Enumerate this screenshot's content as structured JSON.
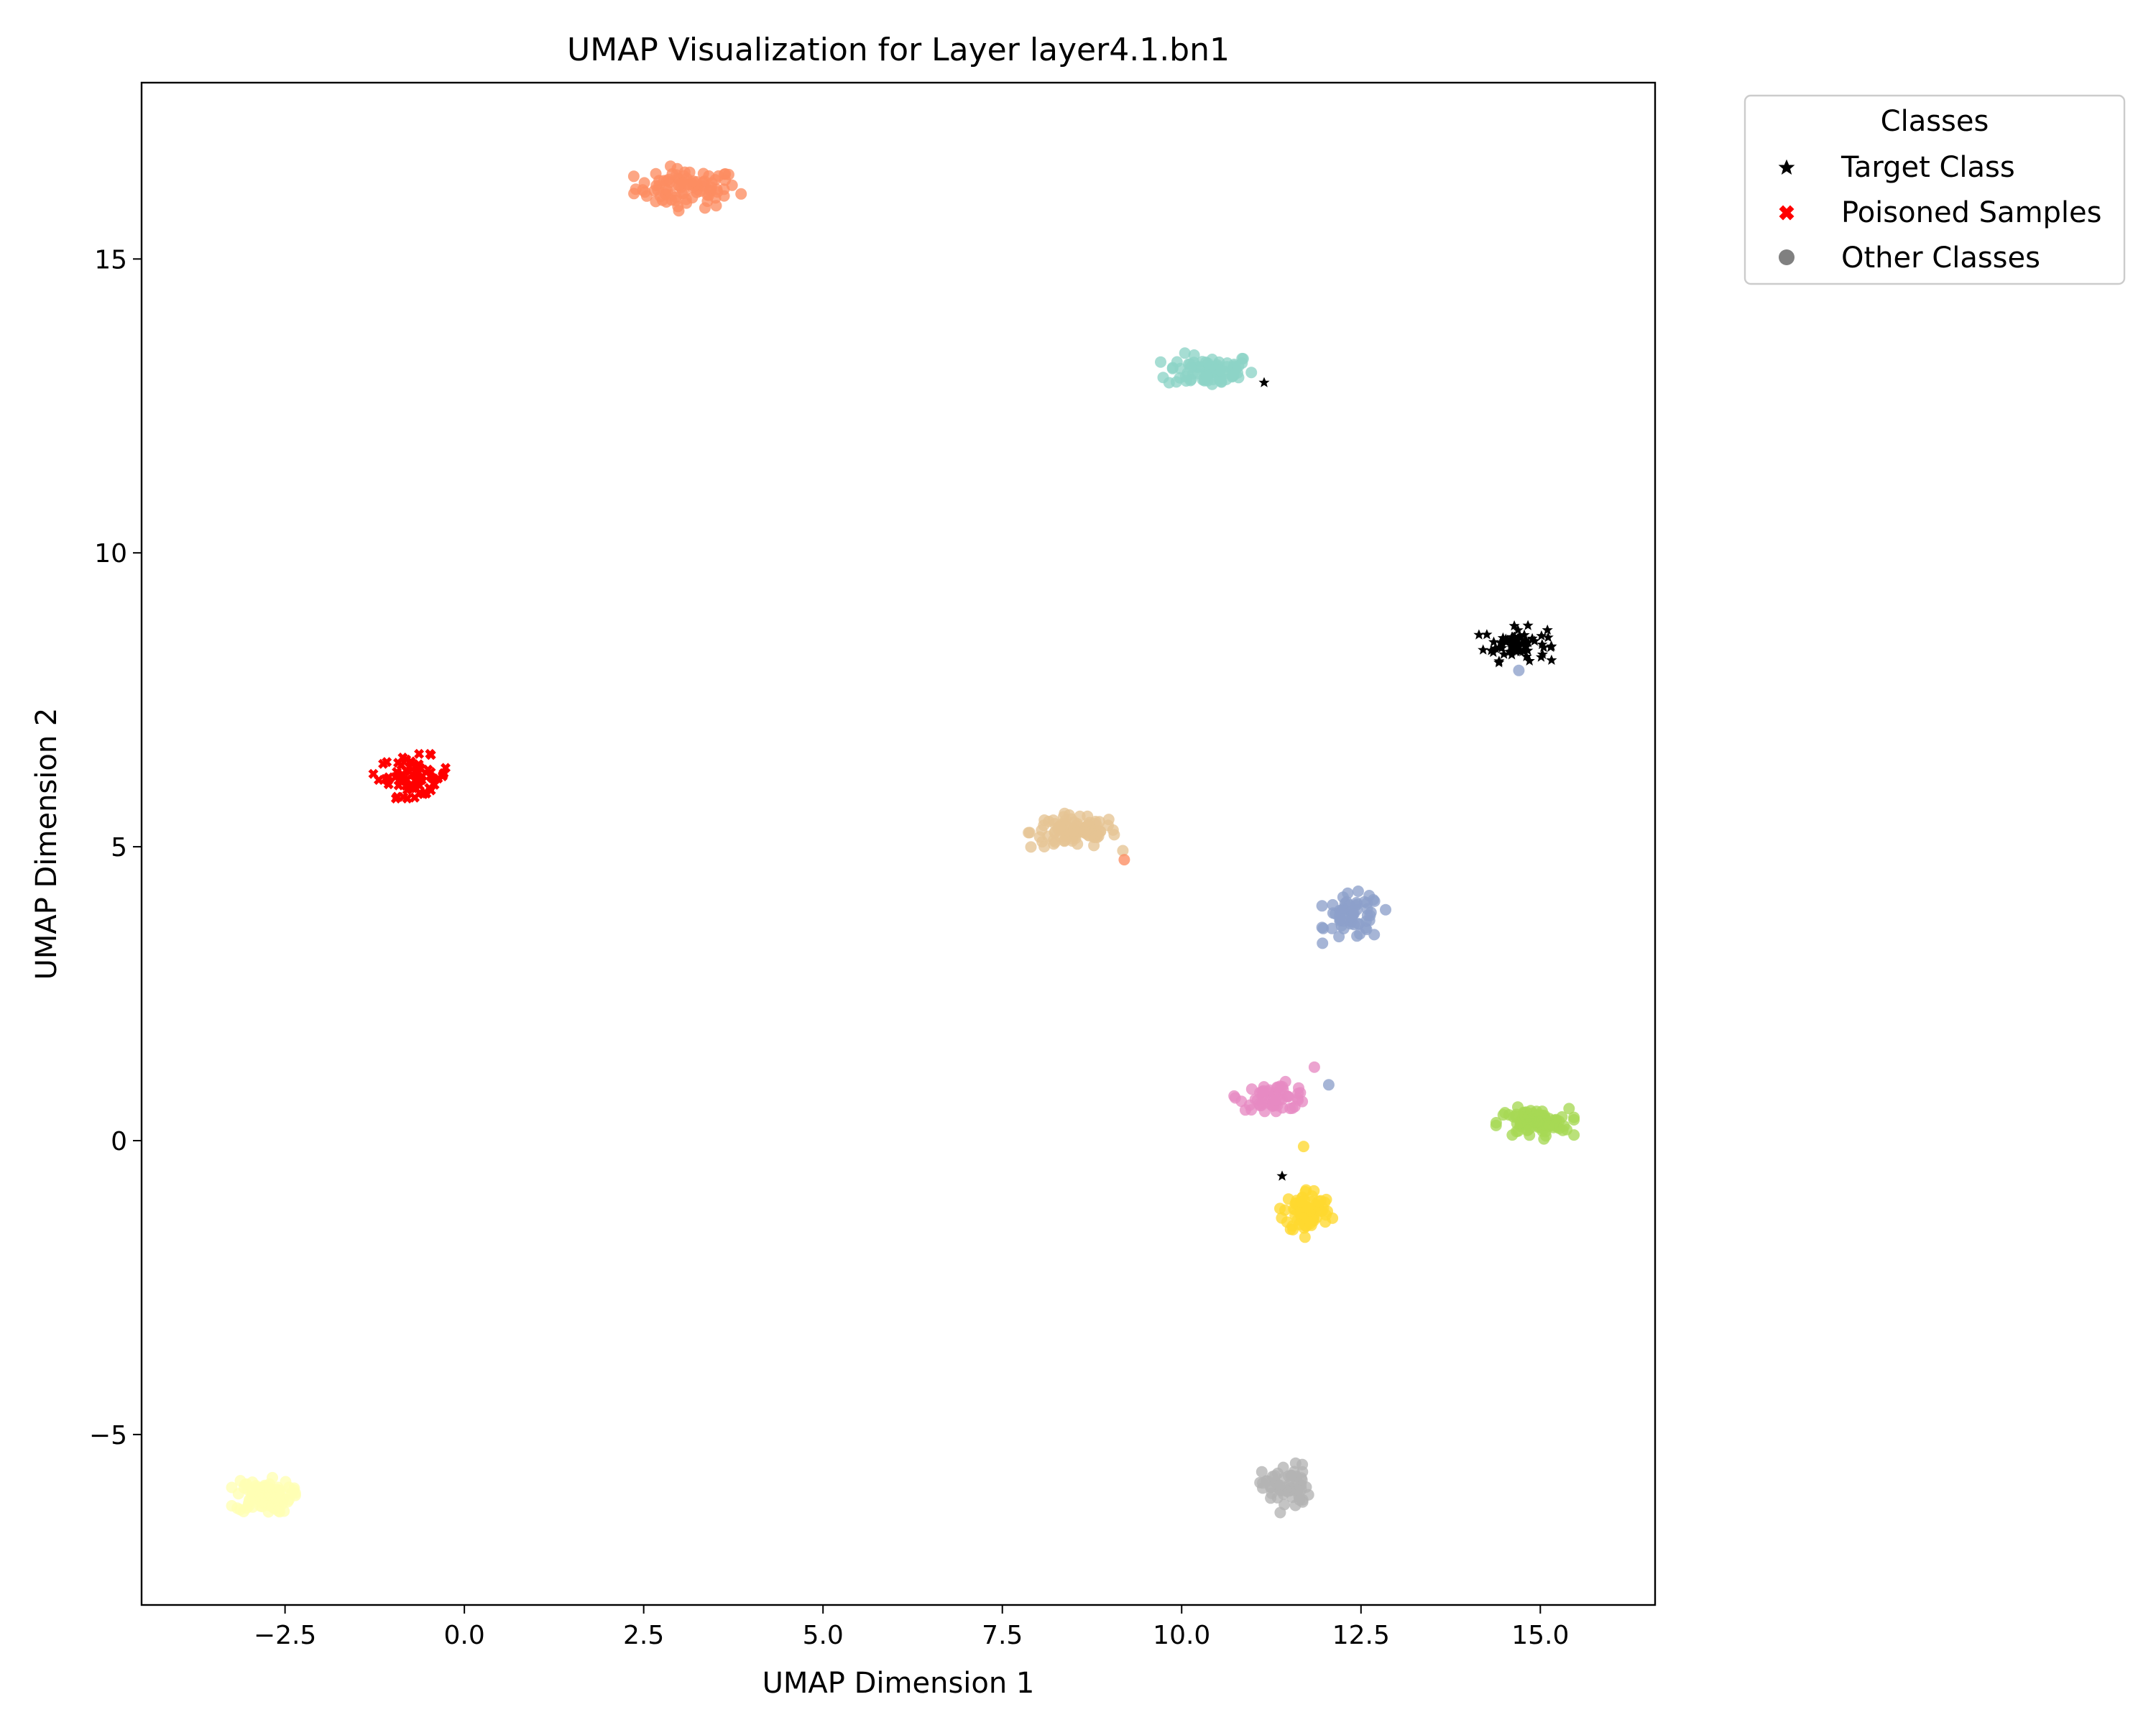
{
  "chart_data": {
    "type": "scatter",
    "title": "UMAP Visualization for Layer layer4.1.bn1",
    "xlabel": "UMAP Dimension 1",
    "ylabel": "UMAP Dimension 2",
    "xlim": [
      -4.5,
      16.6
    ],
    "ylim": [
      -7.9,
      18.0
    ],
    "xticks": [
      -2.5,
      0.0,
      2.5,
      5.0,
      7.5,
      10.0,
      12.5,
      15.0
    ],
    "xtick_labels": [
      "−2.5",
      "0.0",
      "2.5",
      "5.0",
      "7.5",
      "10.0",
      "12.5",
      "15.0"
    ],
    "yticks": [
      -5,
      0,
      5,
      10,
      15
    ],
    "ytick_labels": [
      "−5",
      "0",
      "5",
      "10",
      "15"
    ],
    "grid": false,
    "legend": {
      "title": "Classes",
      "placement": "outside-top-right",
      "entries": [
        {
          "label": "Target Class",
          "marker": "star",
          "color": "#000000"
        },
        {
          "label": "Poisoned Samples",
          "marker": "x",
          "color": "#ff0000"
        },
        {
          "label": "Other Classes",
          "marker": "circle",
          "color": "#808080"
        }
      ]
    },
    "clusters": [
      {
        "group": "other",
        "color": "#fc8d62",
        "marker": "circle",
        "center": [
          3.1,
          16.2
        ],
        "spread": [
          0.65,
          0.3
        ],
        "count": 90
      },
      {
        "group": "other",
        "color": "#8dd3c7",
        "marker": "circle",
        "center": [
          10.4,
          13.1
        ],
        "spread": [
          0.55,
          0.25
        ],
        "count": 80
      },
      {
        "group": "target",
        "color": "#000000",
        "marker": "star",
        "center": [
          14.65,
          8.45
        ],
        "spread": [
          0.4,
          0.25
        ],
        "count": 70
      },
      {
        "group": "poisoned",
        "color": "#ff0000",
        "marker": "x",
        "center": [
          -0.7,
          6.2
        ],
        "spread": [
          0.45,
          0.3
        ],
        "count": 70
      },
      {
        "group": "other",
        "color": "#e5c494",
        "marker": "circle",
        "center": [
          8.5,
          5.25
        ],
        "spread": [
          0.55,
          0.25
        ],
        "count": 100
      },
      {
        "group": "other",
        "color": "#8da0cb",
        "marker": "circle",
        "center": [
          12.4,
          3.8
        ],
        "spread": [
          0.35,
          0.35
        ],
        "count": 60
      },
      {
        "group": "other",
        "color": "#e78ac3",
        "marker": "circle",
        "center": [
          11.3,
          0.75
        ],
        "spread": [
          0.45,
          0.2
        ],
        "count": 60
      },
      {
        "group": "other",
        "color": "#a6d854",
        "marker": "circle",
        "center": [
          14.9,
          0.3
        ],
        "spread": [
          0.45,
          0.22
        ],
        "count": 90
      },
      {
        "group": "other",
        "color": "#ffd92f",
        "marker": "circle",
        "center": [
          11.75,
          -1.2
        ],
        "spread": [
          0.3,
          0.35
        ],
        "count": 80
      },
      {
        "group": "other",
        "color": "#ffffb3",
        "marker": "circle",
        "center": [
          -2.8,
          -6.05
        ],
        "spread": [
          0.35,
          0.25
        ],
        "count": 100
      },
      {
        "group": "other",
        "color": "#b3b3b3",
        "marker": "circle",
        "center": [
          11.45,
          -5.9
        ],
        "spread": [
          0.3,
          0.35
        ],
        "count": 60
      }
    ],
    "outliers": [
      {
        "group": "target",
        "color": "#000000",
        "marker": "star",
        "x": 11.15,
        "y": 12.9
      },
      {
        "group": "target",
        "color": "#000000",
        "marker": "star",
        "x": 11.4,
        "y": -0.6
      },
      {
        "group": "other",
        "color": "#fc8d62",
        "marker": "circle",
        "x": 9.2,
        "y": 4.78
      },
      {
        "group": "other",
        "color": "#8da0cb",
        "marker": "circle",
        "x": 12.05,
        "y": 0.95
      },
      {
        "group": "other",
        "color": "#8da0cb",
        "marker": "circle",
        "x": 14.7,
        "y": 8.0
      },
      {
        "group": "other",
        "color": "#e78ac3",
        "marker": "circle",
        "x": 11.85,
        "y": 1.25
      },
      {
        "group": "other",
        "color": "#ffd92f",
        "marker": "circle",
        "x": 11.7,
        "y": -0.1
      }
    ]
  }
}
